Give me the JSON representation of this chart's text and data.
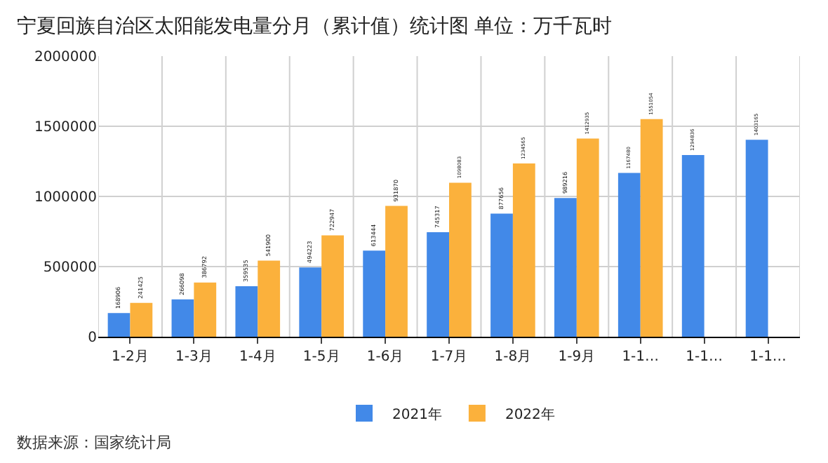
{
  "chart_data": {
    "type": "bar",
    "title": "宁夏回族自治区太阳能发电量分月（累计值）统计图 单位：万千瓦时",
    "categories": [
      "1-2月",
      "1-3月",
      "1-4月",
      "1-5月",
      "1-6月",
      "1-7月",
      "1-8月",
      "1-9月",
      "1-1…",
      "1-1…",
      "1-1…"
    ],
    "series": [
      {
        "name": "2021年",
        "color": "#4289e8",
        "values": [
          168906,
          266098,
          359535,
          494223,
          613444,
          745317,
          877656,
          989216,
          1167480,
          1294836,
          1403165
        ]
      },
      {
        "name": "2022年",
        "color": "#fbb13c",
        "values": [
          241425,
          386792,
          541900,
          722947,
          931870,
          1098083,
          1234565,
          1412935,
          1551054,
          null,
          null
        ]
      }
    ],
    "ylim": [
      0,
      2000000
    ],
    "yticks": [
      0,
      500000,
      1000000,
      1500000,
      2000000
    ],
    "grid": true,
    "legend": "bottom",
    "data_labels": true,
    "annotations": [
      "数据来源：国家统计局"
    ]
  }
}
